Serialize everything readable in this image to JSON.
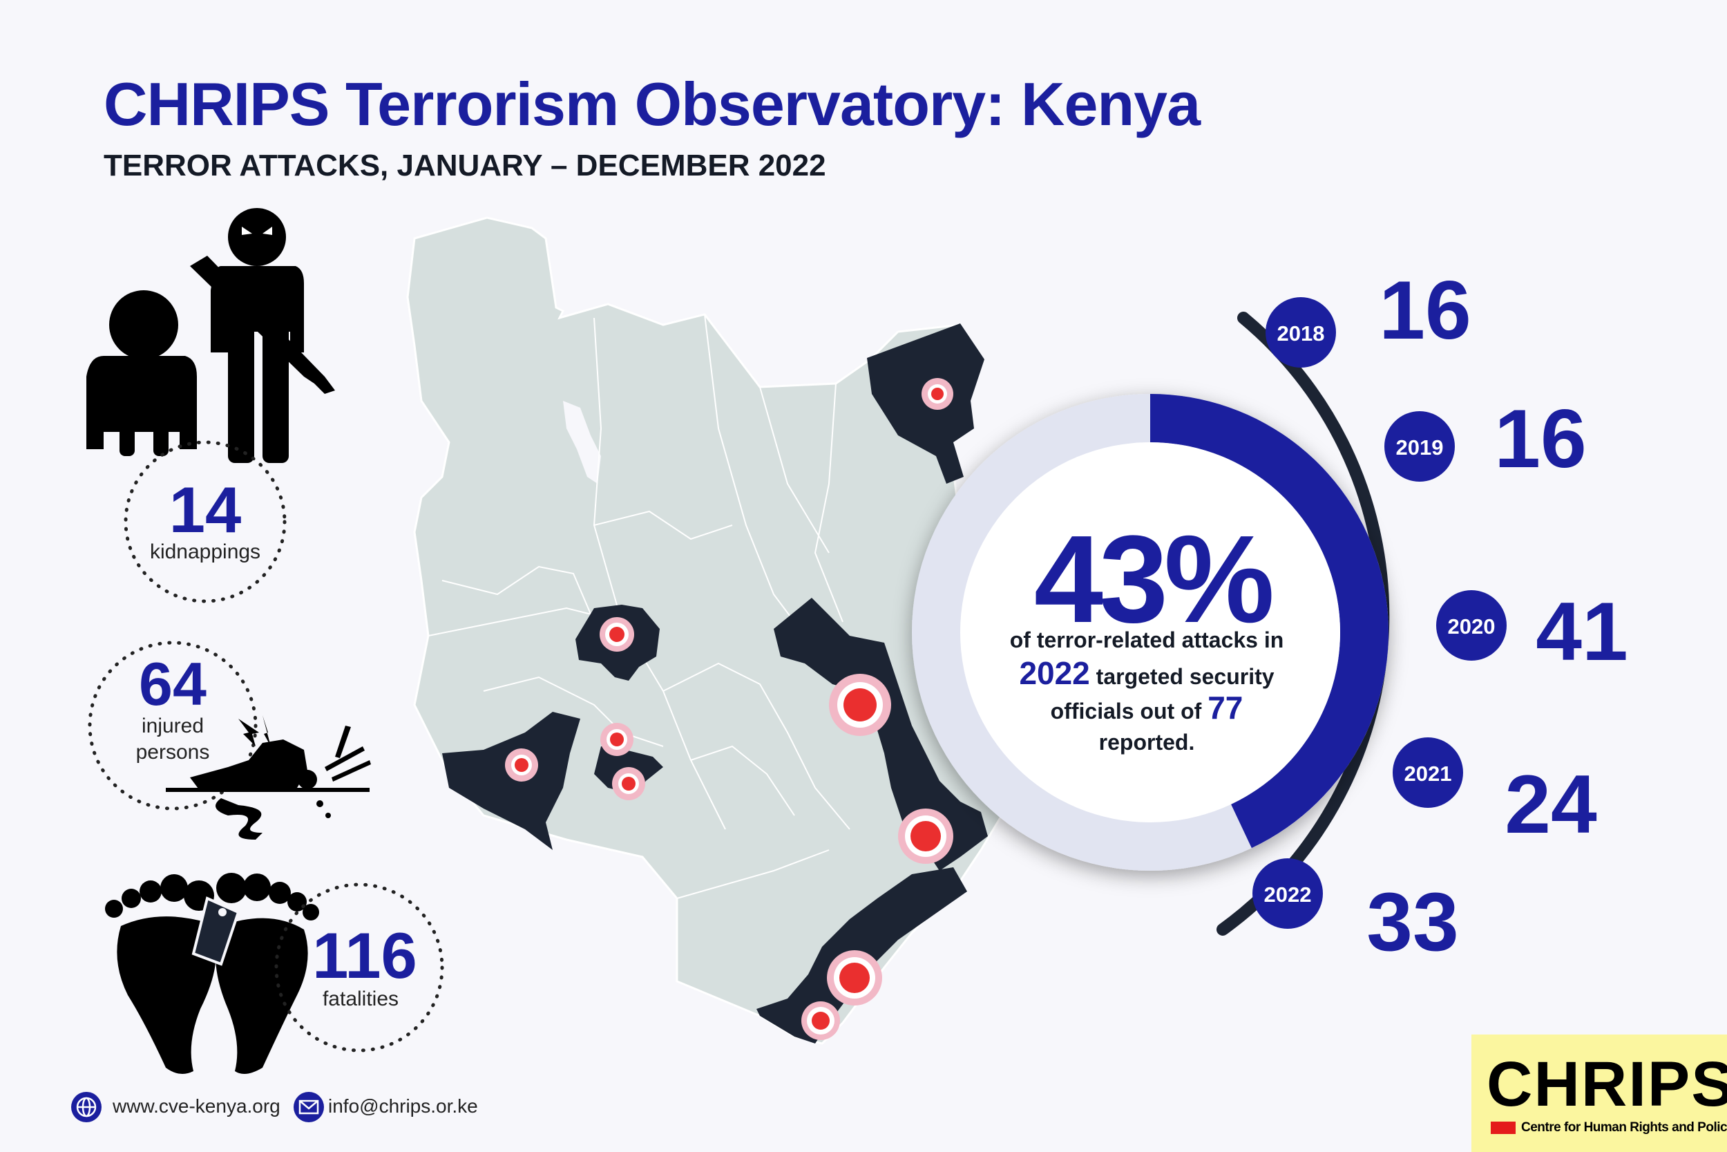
{
  "header": {
    "title": "CHRIPS Terrorism Observatory: Kenya",
    "subtitle": "TERROR ATTACKS, JANUARY – DECEMBER 2022"
  },
  "stats": {
    "kidnappings": {
      "value": "14",
      "label": "kidnappings"
    },
    "injured": {
      "value": "64",
      "label_line1": "injured",
      "label_line2": "persons"
    },
    "fatalities": {
      "value": "116",
      "label": "fatalities"
    }
  },
  "highlight": {
    "percent": "43%",
    "percent_value": 43,
    "line1": "of terror-related attacks in",
    "year": "2022",
    "line2_rest": " targeted security",
    "line3_prefix": "officials out of ",
    "total": "77",
    "line4": "reported."
  },
  "timeline": [
    {
      "year": "2018",
      "count": "16"
    },
    {
      "year": "2019",
      "count": "16"
    },
    {
      "year": "2020",
      "count": "41"
    },
    {
      "year": "2021",
      "count": "24"
    },
    {
      "year": "2022",
      "count": "33"
    }
  ],
  "footer": {
    "website": "www.cve-kenya.org",
    "email": "info@chrips.or.ke"
  },
  "logo": {
    "name": "CHRIPS",
    "tagline": "Centre for Human Rights and Policy Studies"
  },
  "colors": {
    "brand_blue": "#1b1f9e",
    "dark_navy": "#1c2433",
    "map_gray": "#d6dfde",
    "marker_red": "#ea2f2f",
    "marker_ring": "#f2b8c6",
    "ring_light": "#e1e4f1",
    "logo_yellow": "#fbf69f"
  }
}
